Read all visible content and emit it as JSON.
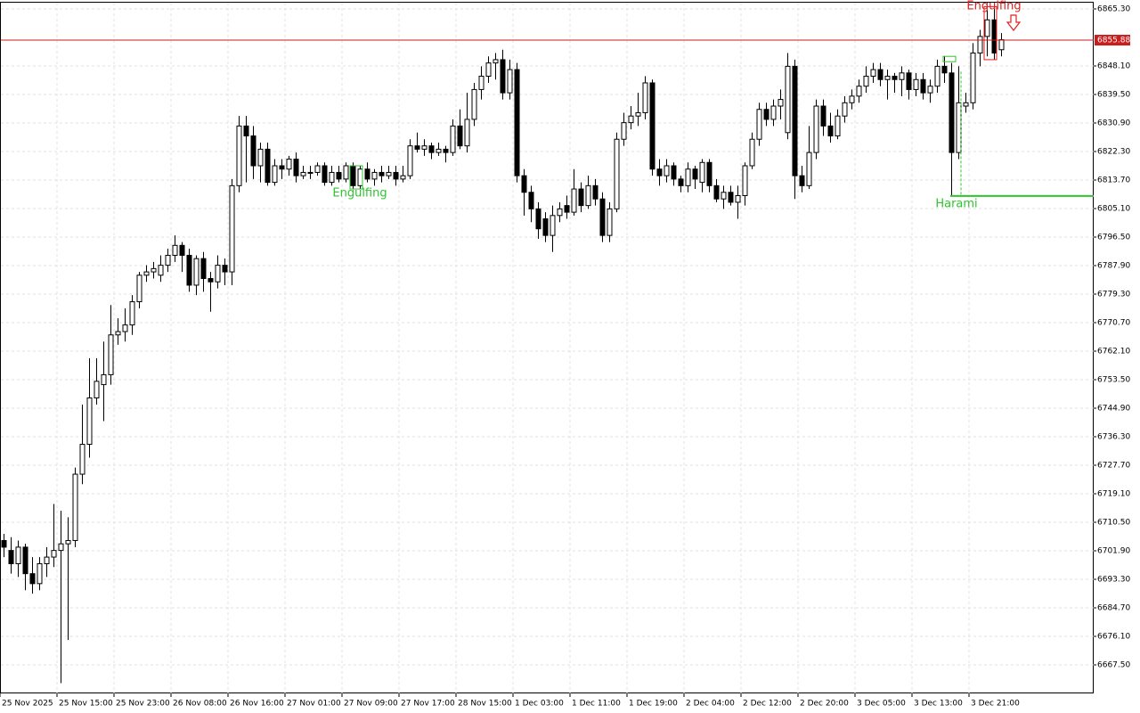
{
  "chart_data": {
    "type": "candlestick",
    "categories": [
      "25 Nov 2025",
      null,
      null,
      null,
      null,
      null,
      null,
      null,
      "25 Nov 15:00",
      null,
      null,
      null,
      null,
      null,
      null,
      null,
      "25 Nov 23:00",
      null,
      null,
      null,
      null,
      null,
      null,
      null,
      "26 Nov 08:00",
      null,
      null,
      null,
      null,
      null,
      null,
      null,
      "26 Nov 16:00",
      null,
      null,
      null,
      null,
      null,
      null,
      null,
      "27 Nov 01:00",
      null,
      null,
      null,
      null,
      null,
      null,
      null,
      "27 Nov 09:00",
      null,
      null,
      null,
      null,
      null,
      null,
      null,
      "27 Nov 17:00",
      null,
      null,
      null,
      null,
      null,
      null,
      null,
      "28 Nov 15:00",
      null,
      null,
      null,
      null,
      null,
      null,
      null,
      "1 Dec 03:00",
      null,
      null,
      null,
      null,
      null,
      null,
      null,
      "1 Dec 11:00",
      null,
      null,
      null,
      null,
      null,
      null,
      null,
      "1 Dec 19:00",
      null,
      null,
      null,
      null,
      null,
      null,
      null,
      "2 Dec 04:00",
      null,
      null,
      null,
      null,
      null,
      null,
      null,
      "2 Dec 12:00",
      null,
      null,
      null,
      null,
      null,
      null,
      null,
      "2 Dec 20:00",
      null,
      null,
      null,
      null,
      null,
      null,
      null,
      "3 Dec 05:00",
      null,
      null,
      null,
      null,
      null,
      null,
      null,
      "3 Dec 13:00",
      null,
      null,
      null,
      null,
      null,
      null,
      null,
      "3 Dec 21:00",
      null,
      null,
      null,
      null
    ],
    "open": [
      6705,
      6702,
      6698,
      6703,
      6695,
      6692,
      6698,
      6700,
      6702,
      6704,
      6705,
      6725,
      6734,
      6748,
      6752,
      6755,
      6767,
      6768,
      6770,
      6777,
      6785,
      6786,
      6785,
      6788,
      6791,
      6794,
      6791,
      6782,
      6790,
      6784,
      6783,
      6788,
      6786,
      6812,
      6830,
      6827,
      6818,
      6823,
      6813,
      6818,
      6817,
      6820,
      6815,
      6816,
      6816,
      6818,
      6813,
      6816,
      6814,
      6818,
      6812,
      6817,
      6814,
      6816,
      6815,
      6816,
      6814,
      6815,
      6824,
      6823,
      6824,
      6822,
      6823,
      6822,
      6830,
      6824,
      6832,
      6841,
      6845,
      6849,
      6850,
      6840,
      6847,
      6815,
      6810,
      6805,
      6802,
      6797,
      6803,
      6806,
      6804,
      6811,
      6806,
      6812,
      6808,
      6797,
      6805,
      6826,
      6831,
      6833,
      6834,
      6843,
      6817,
      6815,
      6818,
      6814,
      6812,
      6817,
      6813,
      6819,
      6812,
      6808,
      6810,
      6807,
      6809,
      6818,
      6826,
      6835,
      6832,
      6836,
      6828,
      6848,
      6815,
      6812,
      6822,
      6836,
      6830,
      6827,
      6833,
      6837,
      6839,
      6842,
      6845,
      6847,
      6844,
      6845,
      6844,
      6846,
      6841,
      6844,
      6840,
      6842,
      6848,
      6846,
      6822,
      6836,
      6837,
      6852,
      6857,
      6862,
      6853
    ],
    "high": [
      6707,
      6706,
      6705,
      6704,
      6700,
      6700,
      6703,
      6716,
      6714,
      6712,
      6727,
      6746,
      6760,
      6760,
      6765,
      6776,
      6772,
      6775,
      6779,
      6786,
      6788,
      6789,
      6791,
      6793,
      6797,
      6795,
      6793,
      6791,
      6792,
      6786,
      6791,
      6790,
      6814,
      6833,
      6833,
      6830,
      6825,
      6825,
      6820,
      6820,
      6821,
      6822,
      6818,
      6818,
      6819,
      6819,
      6818,
      6818,
      6819,
      6819,
      6818,
      6819,
      6817,
      6818,
      6818,
      6818,
      6818,
      6826,
      6828,
      6826,
      6825,
      6825,
      6824,
      6832,
      6835,
      6840,
      6843,
      6848,
      6851,
      6852,
      6853,
      6850,
      6849,
      6817,
      6812,
      6807,
      6804,
      6806,
      6807,
      6809,
      6817,
      6813,
      6815,
      6814,
      6810,
      6807,
      6828,
      6834,
      6836,
      6840,
      6845,
      6844,
      6820,
      6820,
      6819,
      6815,
      6819,
      6818,
      6820,
      6820,
      6814,
      6812,
      6812,
      6812,
      6819,
      6828,
      6837,
      6837,
      6838,
      6841,
      6852,
      6850,
      6818,
      6830,
      6838,
      6838,
      6834,
      6835,
      6839,
      6841,
      6844,
      6848,
      6849,
      6849,
      6847,
      6846,
      6848,
      6847,
      6846,
      6846,
      6844,
      6850,
      6851,
      6849,
      6848,
      6840,
      6855,
      6859,
      6865,
      6866,
      6858
    ],
    "low": [
      6700,
      6695,
      6694,
      6690,
      6689,
      6690,
      6694,
      6697,
      6662,
      6675,
      6703,
      6722,
      6730,
      6746,
      6741,
      6752,
      6764,
      6765,
      6767,
      6775,
      6783,
      6784,
      6783,
      6786,
      6789,
      6786,
      6780,
      6779,
      6780,
      6774,
      6781,
      6782,
      6782,
      6810,
      6813,
      6814,
      6813,
      6812,
      6812,
      6814,
      6815,
      6813,
      6814,
      6814,
      6815,
      6812,
      6812,
      6813,
      6813,
      6811,
      6811,
      6813,
      6812,
      6813,
      6814,
      6812,
      6813,
      6814,
      6822,
      6821,
      6820,
      6821,
      6819,
      6821,
      6823,
      6822,
      6830,
      6838,
      6843,
      6844,
      6838,
      6838,
      6813,
      6803,
      6801,
      6796,
      6795,
      6792,
      6801,
      6802,
      6803,
      6804,
      6805,
      6806,
      6795,
      6795,
      6804,
      6824,
      6829,
      6830,
      6832,
      6815,
      6812,
      6813,
      6812,
      6810,
      6810,
      6811,
      6810,
      6810,
      6807,
      6805,
      6806,
      6802,
      6806,
      6817,
      6824,
      6830,
      6830,
      6832,
      6826,
      6808,
      6810,
      6811,
      6820,
      6827,
      6825,
      6826,
      6831,
      6835,
      6837,
      6840,
      6843,
      6842,
      6838,
      6840,
      6839,
      6838,
      6839,
      6838,
      6837,
      6840,
      6843,
      6809,
      6820,
      6834,
      6835,
      6848,
      6851,
      6850,
      6851
    ],
    "close": [
      6703,
      6698,
      6703,
      6695,
      6692,
      6698,
      6700,
      6702,
      6704,
      6705,
      6725,
      6734,
      6748,
      6753,
      6755,
      6767,
      6768,
      6770,
      6777,
      6785,
      6786,
      6787,
      6788,
      6791,
      6794,
      6791,
      6782,
      6790,
      6784,
      6783,
      6788,
      6786,
      6812,
      6830,
      6827,
      6818,
      6823,
      6813,
      6818,
      6817,
      6820,
      6815,
      6816,
      6816,
      6818,
      6813,
      6816,
      6814,
      6818,
      6812,
      6817,
      6814,
      6816,
      6815,
      6816,
      6814,
      6815,
      6824,
      6823,
      6824,
      6822,
      6823,
      6822,
      6830,
      6824,
      6832,
      6841,
      6845,
      6849,
      6850,
      6840,
      6847,
      6815,
      6810,
      6805,
      6799,
      6797,
      6803,
      6805,
      6804,
      6811,
      6806,
      6812,
      6808,
      6797,
      6805,
      6826,
      6831,
      6833,
      6834,
      6843,
      6817,
      6815,
      6818,
      6814,
      6812,
      6817,
      6814,
      6819,
      6812,
      6808,
      6810,
      6807,
      6809,
      6818,
      6826,
      6835,
      6832,
      6836,
      6838,
      6848,
      6815,
      6812,
      6822,
      6836,
      6830,
      6827,
      6833,
      6837,
      6839,
      6842,
      6845,
      6847,
      6844,
      6845,
      6844,
      6846,
      6841,
      6844,
      6840,
      6842,
      6848,
      6846,
      6822,
      6837,
      6837,
      6852,
      6857,
      6862,
      6852,
      6856
    ],
    "up_color": "#ffffff",
    "down_color": "#000000",
    "ylim": [
      6658.9,
      6867.45
    ],
    "yticks": [
      {
        "value": 6865.3,
        "label": "6865.30"
      },
      {
        "value": 6848.1,
        "label": "6848.10"
      },
      {
        "value": 6839.5,
        "label": "6839.50"
      },
      {
        "value": 6830.9,
        "label": "6830.90"
      },
      {
        "value": 6822.3,
        "label": "6822.30"
      },
      {
        "value": 6813.7,
        "label": "6813.70"
      },
      {
        "value": 6805.1,
        "label": "6805.10"
      },
      {
        "value": 6796.5,
        "label": "6796.50"
      },
      {
        "value": 6787.9,
        "label": "6787.90"
      },
      {
        "value": 6779.3,
        "label": "6779.30"
      },
      {
        "value": 6770.7,
        "label": "6770.70"
      },
      {
        "value": 6762.1,
        "label": "6762.10"
      },
      {
        "value": 6753.5,
        "label": "6753.50"
      },
      {
        "value": 6744.9,
        "label": "6744.90"
      },
      {
        "value": 6736.3,
        "label": "6736.30"
      },
      {
        "value": 6727.7,
        "label": "6727.70"
      },
      {
        "value": 6719.1,
        "label": "6719.10"
      },
      {
        "value": 6710.5,
        "label": "6710.50"
      },
      {
        "value": 6701.9,
        "label": "6701.90"
      },
      {
        "value": 6693.3,
        "label": "6693.30"
      },
      {
        "value": 6684.7,
        "label": "6684.70"
      },
      {
        "value": 6676.1,
        "label": "6676.10"
      },
      {
        "value": 6667.5,
        "label": "6667.50"
      }
    ],
    "grid": true,
    "current_price": 6855.88,
    "current_price_color": "#c81e1e",
    "harami_level": 6808.9,
    "annotations": [
      {
        "text": "Engulfing",
        "color": "#2ec42e"
      },
      {
        "text": "Engulfing",
        "color": "#e02020"
      },
      {
        "text": "Harami",
        "color": "#2ec42e"
      }
    ]
  }
}
